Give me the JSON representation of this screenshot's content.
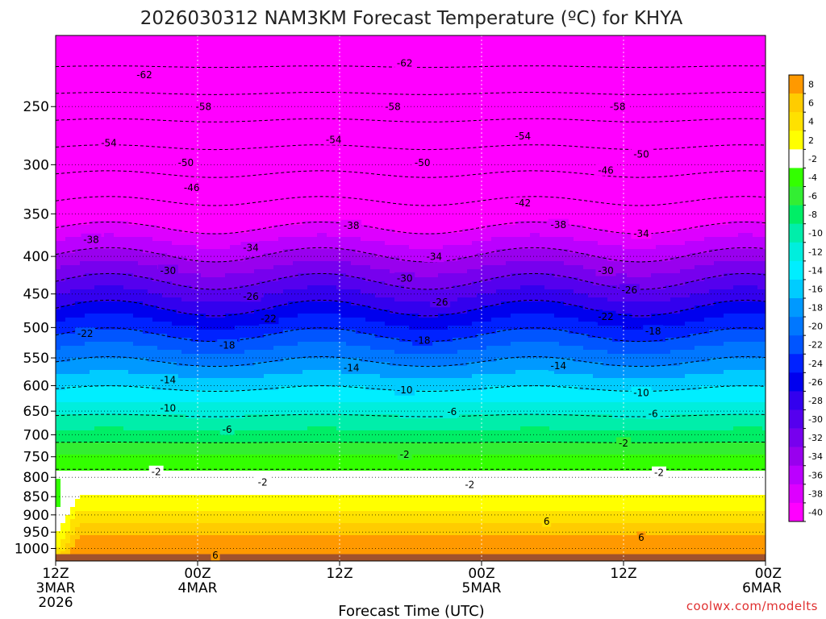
{
  "chart_data": {
    "type": "heatmap",
    "title": "2026030312 NAM3KM Forecast Temperature (ºC) for KHYA",
    "xlabel": "Forecast Time (UTC)",
    "ylabel": "",
    "credit": "coolwx.com/modelts",
    "x_ticks": [
      {
        "hour": 0,
        "lines": [
          "12Z",
          "3MAR",
          "2026"
        ]
      },
      {
        "hour": 12,
        "lines": [
          "00Z",
          "4MAR"
        ]
      },
      {
        "hour": 24,
        "lines": [
          "12Z"
        ]
      },
      {
        "hour": 36,
        "lines": [
          "00Z",
          "5MAR"
        ]
      },
      {
        "hour": 48,
        "lines": [
          "12Z"
        ]
      },
      {
        "hour": 60,
        "lines": [
          "00Z",
          "6MAR"
        ]
      }
    ],
    "xlim_hours": [
      0,
      60
    ],
    "y_axis": "pressure (hPa), reversed, log scale",
    "ylim": [
      1040,
      200
    ],
    "y_ticks": [
      250,
      300,
      350,
      400,
      450,
      500,
      550,
      600,
      650,
      700,
      750,
      800,
      850,
      900,
      950,
      1000
    ],
    "grid": true,
    "colorbar_labels": [
      8,
      6,
      4,
      2,
      -2,
      -4,
      -6,
      -8,
      -10,
      -12,
      -14,
      -16,
      -18,
      -20,
      -22,
      -24,
      -26,
      -28,
      -30,
      -32,
      -34,
      -36,
      -38,
      -40
    ],
    "colorbar_colors": [
      "#ff9900",
      "#ffcc00",
      "#ffe100",
      "#ffff00",
      "#ffffff",
      "#33ff00",
      "#33ee33",
      "#00ee66",
      "#00eeaa",
      "#00eedd",
      "#00eeff",
      "#00ccff",
      "#0099ff",
      "#0077ff",
      "#0055ff",
      "#0022ff",
      "#0000ee",
      "#3300ee",
      "#5500ee",
      "#7700ee",
      "#9900ee",
      "#bb00ff",
      "#dd00ff",
      "#ff00ff"
    ],
    "contour_labels": [
      {
        "value": "-62",
        "hour": 7.5,
        "p": 226
      },
      {
        "value": "-62",
        "hour": 29.5,
        "p": 218
      },
      {
        "value": "-58",
        "hour": 12.5,
        "p": 250
      },
      {
        "value": "-58",
        "hour": 28.5,
        "p": 250
      },
      {
        "value": "-58",
        "hour": 47.5,
        "p": 250
      },
      {
        "value": "-54",
        "hour": 4.5,
        "p": 280
      },
      {
        "value": "-54",
        "hour": 23.5,
        "p": 277
      },
      {
        "value": "-54",
        "hour": 39.5,
        "p": 274
      },
      {
        "value": "-50",
        "hour": 11,
        "p": 298
      },
      {
        "value": "-50",
        "hour": 31,
        "p": 298
      },
      {
        "value": "-50",
        "hour": 49.5,
        "p": 290
      },
      {
        "value": "-46",
        "hour": 11.5,
        "p": 322
      },
      {
        "value": "-46",
        "hour": 46.5,
        "p": 305
      },
      {
        "value": "-42",
        "hour": 39.5,
        "p": 338
      },
      {
        "value": "-38",
        "hour": 3,
        "p": 379
      },
      {
        "value": "-38",
        "hour": 25,
        "p": 363
      },
      {
        "value": "-38",
        "hour": 42.5,
        "p": 362
      },
      {
        "value": "-34",
        "hour": 16.5,
        "p": 389
      },
      {
        "value": "-34",
        "hour": 32,
        "p": 400
      },
      {
        "value": "-34",
        "hour": 49.5,
        "p": 372
      },
      {
        "value": "-30",
        "hour": 9.5,
        "p": 418
      },
      {
        "value": "-30",
        "hour": 29.5,
        "p": 428
      },
      {
        "value": "-30",
        "hour": 46.5,
        "p": 418
      },
      {
        "value": "-26",
        "hour": 16.5,
        "p": 453
      },
      {
        "value": "-26",
        "hour": 32.5,
        "p": 461
      },
      {
        "value": "-26",
        "hour": 48.5,
        "p": 444
      },
      {
        "value": "-22",
        "hour": 2.5,
        "p": 509
      },
      {
        "value": "-22",
        "hour": 18,
        "p": 486
      },
      {
        "value": "-22",
        "hour": 46.5,
        "p": 483
      },
      {
        "value": "-18",
        "hour": 14.5,
        "p": 528
      },
      {
        "value": "-18",
        "hour": 31,
        "p": 520
      },
      {
        "value": "-18",
        "hour": 50.5,
        "p": 505
      },
      {
        "value": "-14",
        "hour": 9.5,
        "p": 589
      },
      {
        "value": "-14",
        "hour": 25,
        "p": 567
      },
      {
        "value": "-14",
        "hour": 42.5,
        "p": 563
      },
      {
        "value": "-10",
        "hour": 9.5,
        "p": 643
      },
      {
        "value": "-10",
        "hour": 29.5,
        "p": 608
      },
      {
        "value": "-10",
        "hour": 49.5,
        "p": 613
      },
      {
        "value": "-6",
        "hour": 14.5,
        "p": 688
      },
      {
        "value": "-6",
        "hour": 33.5,
        "p": 651
      },
      {
        "value": "-6",
        "hour": 50.5,
        "p": 655
      },
      {
        "value": "-2",
        "hour": 8.5,
        "p": 785
      },
      {
        "value": "-2",
        "hour": 17.5,
        "p": 812
      },
      {
        "value": "-2",
        "hour": 29.5,
        "p": 744
      },
      {
        "value": "-2",
        "hour": 35,
        "p": 818
      },
      {
        "value": "-2",
        "hour": 48,
        "p": 718
      },
      {
        "value": "-2",
        "hour": 51,
        "p": 787
      },
      {
        "value": "6",
        "hour": 41.5,
        "p": 918
      },
      {
        "value": "6",
        "hour": 49.5,
        "p": 965
      },
      {
        "value": "6",
        "hour": 13.5,
        "p": 1020
      }
    ]
  }
}
